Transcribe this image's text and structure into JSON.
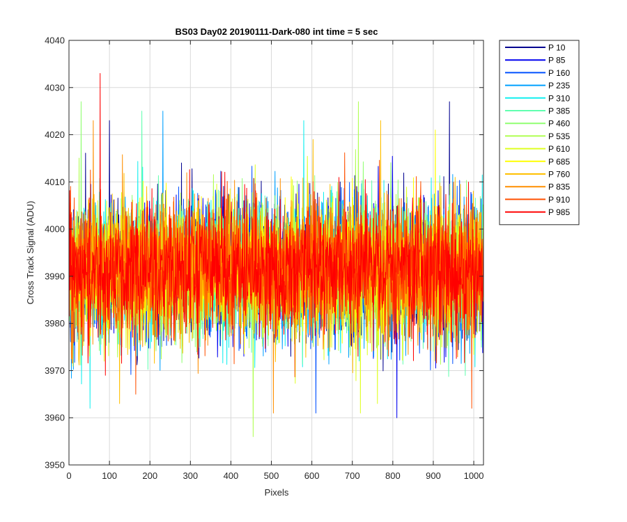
{
  "chart_data": {
    "type": "line",
    "title": "BS03 Day02 20190111-Dark-080 int time = 5 sec",
    "xlabel": "Pixels",
    "ylabel": "Cross Track Signal (ADU)",
    "xlim": [
      0,
      1024
    ],
    "ylim": [
      3950,
      4040
    ],
    "xticks": [
      0,
      100,
      200,
      300,
      400,
      500,
      600,
      700,
      800,
      900,
      1000
    ],
    "yticks": [
      3950,
      3960,
      3970,
      3980,
      3990,
      4000,
      4010,
      4020,
      4030,
      4040
    ],
    "grid": true,
    "legend_location": "outside-right-top",
    "x_start": 1,
    "x_step": 1,
    "noise_seed": 2019,
    "series": [
      {
        "name": "P 10",
        "color": "#00008F",
        "mean": 3991.5,
        "std": 7.0,
        "spikes": [
          [
            940,
            4027
          ],
          [
            100,
            4023
          ]
        ]
      },
      {
        "name": "P 85",
        "color": "#0000EF",
        "mean": 3991.5,
        "std": 7.0,
        "spikes": [
          [
            810,
            3960
          ]
        ]
      },
      {
        "name": "P 160",
        "color": "#0050FF",
        "mean": 3991.5,
        "std": 7.0,
        "spikes": [
          [
            610,
            3961
          ]
        ]
      },
      {
        "name": "P 235",
        "color": "#00A0FF",
        "mean": 3991.5,
        "std": 7.0,
        "spikes": [
          [
            232,
            4025
          ]
        ]
      },
      {
        "name": "P 310",
        "color": "#10EFEF",
        "mean": 3991.5,
        "std": 7.0,
        "spikes": [
          [
            580,
            4023
          ],
          [
            52,
            3962
          ]
        ]
      },
      {
        "name": "P 385",
        "color": "#60FFAF",
        "mean": 3991.5,
        "std": 7.0,
        "spikes": [
          [
            180,
            4025
          ]
        ]
      },
      {
        "name": "P 460",
        "color": "#8FFF70",
        "mean": 3991.5,
        "std": 7.0,
        "spikes": [
          [
            30,
            4027
          ]
        ]
      },
      {
        "name": "P 535",
        "color": "#AFFF50",
        "mean": 3991.5,
        "std": 7.0,
        "spikes": [
          [
            455,
            3956
          ],
          [
            715,
            4027
          ]
        ]
      },
      {
        "name": "P 610",
        "color": "#DFFF20",
        "mean": 3991.5,
        "std": 7.0,
        "spikes": [
          [
            720,
            3961
          ]
        ]
      },
      {
        "name": "P 685",
        "color": "#FFFF00",
        "mean": 3991.5,
        "std": 7.0,
        "spikes": [
          [
            905,
            4021
          ]
        ]
      },
      {
        "name": "P 760",
        "color": "#FFBF00",
        "mean": 3991.5,
        "std": 7.0,
        "spikes": [
          [
            770,
            4023
          ],
          [
            125,
            3963
          ]
        ]
      },
      {
        "name": "P 835",
        "color": "#FF8F00",
        "mean": 3991.5,
        "std": 7.0,
        "spikes": [
          [
            505,
            3961
          ],
          [
            60,
            4023
          ]
        ]
      },
      {
        "name": "P 910",
        "color": "#FF5000",
        "mean": 3991.5,
        "std": 7.0,
        "spikes": [
          [
            995,
            3962
          ],
          [
            165,
            3965
          ]
        ]
      },
      {
        "name": "P 985",
        "color": "#FF0000",
        "mean": 3991.5,
        "std": 7.0,
        "spikes": [
          [
            77,
            4033
          ],
          [
            90,
            3969
          ]
        ]
      }
    ]
  }
}
